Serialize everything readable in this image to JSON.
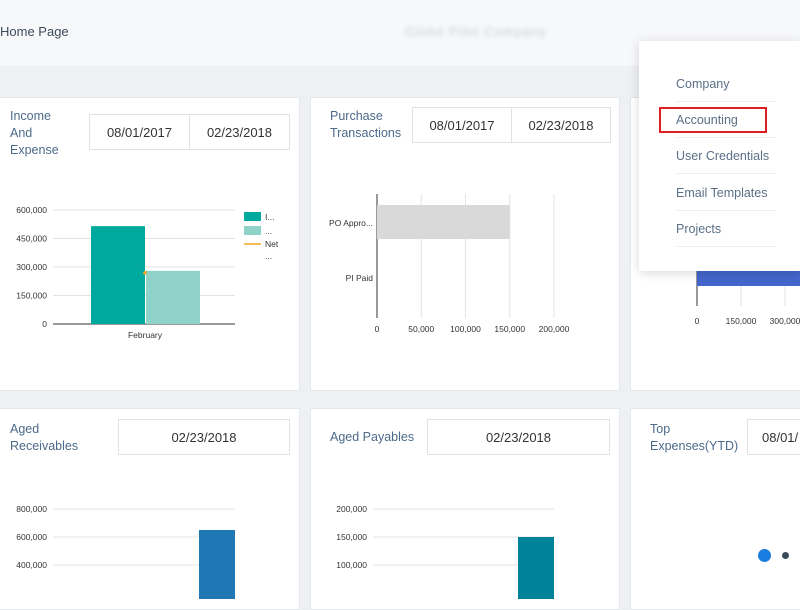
{
  "header": {
    "home_label": "Home Page",
    "company_name": "Globe Pilot Company"
  },
  "cards": {
    "income_expense": {
      "title": [
        "Income",
        "And",
        "Expense"
      ],
      "date_from": "08/01/2017",
      "date_to": "02/23/2018"
    },
    "purchase": {
      "title": [
        "Purchase",
        "Transactions"
      ],
      "date_from": "08/01/2017",
      "date_to": "02/23/2018"
    },
    "aged_receivables": {
      "title": [
        "Aged",
        "Receivables"
      ],
      "date": "02/23/2018"
    },
    "aged_payables": {
      "title": "Aged Payables",
      "date": "02/23/2018"
    },
    "top_expenses": {
      "title": [
        "Top",
        "Expenses(YTD)"
      ],
      "date_from": "08/01/"
    }
  },
  "menu": {
    "items": [
      "Company",
      "Accounting",
      "User Credentials",
      "Email Templates",
      "Projects"
    ],
    "highlighted": "Accounting"
  },
  "colors": {
    "income": "#00a99d",
    "expense": "#8fd3c8",
    "net": "#f5a623",
    "purchase_bar": "#d9d9d9",
    "blue_bar": "#4466cc",
    "receivables_bar": "#1f77b4",
    "payables_bar": "#00829b",
    "highlight": "#e02020"
  },
  "chart_data": [
    {
      "type": "bar",
      "id": "income_expense",
      "categories": [
        "February"
      ],
      "series": [
        {
          "name": "I...",
          "values": [
            515000
          ]
        },
        {
          "name": "...",
          "values": [
            280000
          ]
        }
      ],
      "legend_extra": [
        "Net",
        "..."
      ],
      "yticks": [
        "0",
        "150,000",
        "300,000",
        "450,000",
        "600,000"
      ],
      "ylim": [
        0,
        600000
      ],
      "legend": "right"
    },
    {
      "type": "bar",
      "id": "purchase",
      "orientation": "horizontal",
      "categories": [
        "PO Appro...",
        "PI Paid"
      ],
      "values": [
        150000,
        0
      ],
      "xticks": [
        "0",
        "50,000",
        "100,000",
        "150,000",
        "200,000"
      ],
      "xlim": [
        0,
        200000
      ]
    },
    {
      "type": "bar",
      "id": "partial_third",
      "orientation": "horizontal",
      "xticks": [
        "0",
        "150,000",
        "300,000"
      ]
    },
    {
      "type": "bar",
      "id": "aged_receivables",
      "values": [
        650000
      ],
      "yticks": [
        "400,000",
        "600,000",
        "800,000"
      ],
      "ylim": [
        0,
        800000
      ]
    },
    {
      "type": "bar",
      "id": "aged_payables",
      "values": [
        150000
      ],
      "yticks": [
        "100,000",
        "150,000",
        "200,000"
      ],
      "ylim": [
        0,
        200000
      ]
    }
  ]
}
